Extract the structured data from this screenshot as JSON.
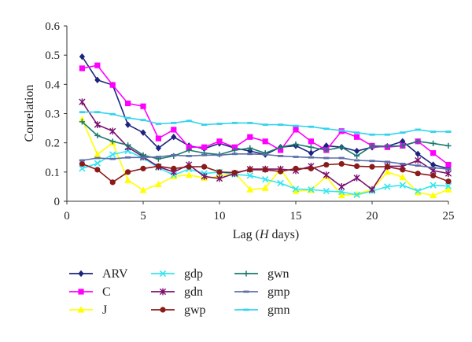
{
  "chart_data": {
    "type": "line",
    "xlabel_prefix": "Lag (",
    "xlabel_italic": "H",
    "xlabel_suffix": " days)",
    "ylabel": "Correlation",
    "xlim": [
      0,
      25
    ],
    "ylim": [
      0,
      0.6
    ],
    "xticks": [
      "0",
      "5",
      "10",
      "15",
      "20",
      "25"
    ],
    "yticks": [
      "0",
      "0.1",
      "0.2",
      "0.3",
      "0.4",
      "0.5",
      "0.6"
    ],
    "grid": false,
    "legend_position": "bottom",
    "x": [
      1,
      2,
      3,
      4,
      5,
      6,
      7,
      8,
      9,
      10,
      11,
      12,
      13,
      14,
      15,
      16,
      17,
      18,
      19,
      20,
      21,
      22,
      23,
      24,
      25
    ],
    "series": [
      {
        "name": "ARV",
        "color": "#1a237e",
        "marker": "diamond",
        "values": [
          0.495,
          0.415,
          0.398,
          0.262,
          0.235,
          0.182,
          0.22,
          0.19,
          0.18,
          0.198,
          0.182,
          0.172,
          0.16,
          0.185,
          0.19,
          0.165,
          0.19,
          0.185,
          0.172,
          0.185,
          0.188,
          0.205,
          0.162,
          0.125,
          0.112
        ]
      },
      {
        "name": "C",
        "color": "#ff00ff",
        "marker": "square",
        "values": [
          0.455,
          0.465,
          0.398,
          0.335,
          0.325,
          0.215,
          0.245,
          0.185,
          0.185,
          0.205,
          0.185,
          0.22,
          0.205,
          0.175,
          0.245,
          0.205,
          0.175,
          0.24,
          0.22,
          0.19,
          0.185,
          0.19,
          0.205,
          0.165,
          0.125
        ]
      },
      {
        "name": "J",
        "color": "#ffff00",
        "marker": "triangle",
        "values": [
          0.28,
          0.16,
          0.2,
          0.072,
          0.038,
          0.058,
          0.085,
          0.09,
          0.08,
          0.085,
          0.098,
          0.04,
          0.045,
          0.11,
          0.035,
          0.038,
          0.085,
          0.02,
          0.025,
          0.04,
          0.1,
          0.082,
          0.03,
          0.02,
          0.04
        ]
      },
      {
        "name": "gdp",
        "color": "#33e6f0",
        "marker": "x",
        "values": [
          0.112,
          0.13,
          0.16,
          0.172,
          0.148,
          0.115,
          0.09,
          0.11,
          0.095,
          0.1,
          0.092,
          0.088,
          0.075,
          0.062,
          0.042,
          0.04,
          0.035,
          0.032,
          0.022,
          0.035,
          0.05,
          0.055,
          0.035,
          0.055,
          0.052
        ]
      },
      {
        "name": "gdn",
        "color": "#7b1070",
        "marker": "star",
        "values": [
          0.34,
          0.262,
          0.24,
          0.185,
          0.152,
          0.118,
          0.1,
          0.125,
          0.085,
          0.078,
          0.095,
          0.11,
          0.11,
          0.11,
          0.105,
          0.12,
          0.09,
          0.05,
          0.08,
          0.04,
          0.12,
          0.12,
          0.14,
          0.105,
          0.095
        ]
      },
      {
        "name": "gwp",
        "color": "#8b1a1a",
        "marker": "circle",
        "values": [
          0.128,
          0.108,
          0.065,
          0.1,
          0.112,
          0.12,
          0.112,
          0.118,
          0.118,
          0.1,
          0.098,
          0.108,
          0.108,
          0.102,
          0.112,
          0.112,
          0.125,
          0.128,
          0.12,
          0.118,
          0.118,
          0.108,
          0.095,
          0.088,
          0.068
        ]
      },
      {
        "name": "gwn",
        "color": "#1b7a6e",
        "marker": "plus",
        "values": [
          0.272,
          0.225,
          0.205,
          0.192,
          0.158,
          0.145,
          0.155,
          0.175,
          0.165,
          0.16,
          0.175,
          0.182,
          0.165,
          0.185,
          0.195,
          0.185,
          0.175,
          0.185,
          0.155,
          0.19,
          0.188,
          0.19,
          0.205,
          0.198,
          0.19
        ]
      },
      {
        "name": "gmp",
        "color": "#5c6fa8",
        "marker": "dash",
        "values": [
          0.14,
          0.148,
          0.145,
          0.15,
          0.15,
          0.152,
          0.158,
          0.155,
          0.158,
          0.158,
          0.162,
          0.162,
          0.16,
          0.155,
          0.152,
          0.15,
          0.148,
          0.148,
          0.14,
          0.138,
          0.135,
          0.128,
          0.122,
          0.115,
          0.11
        ]
      },
      {
        "name": "gmn",
        "color": "#33d3ee",
        "marker": "dash",
        "values": [
          0.305,
          0.305,
          0.298,
          0.285,
          0.278,
          0.265,
          0.268,
          0.275,
          0.262,
          0.265,
          0.268,
          0.268,
          0.262,
          0.262,
          0.258,
          0.255,
          0.248,
          0.242,
          0.235,
          0.228,
          0.228,
          0.235,
          0.245,
          0.238,
          0.238
        ]
      }
    ]
  }
}
